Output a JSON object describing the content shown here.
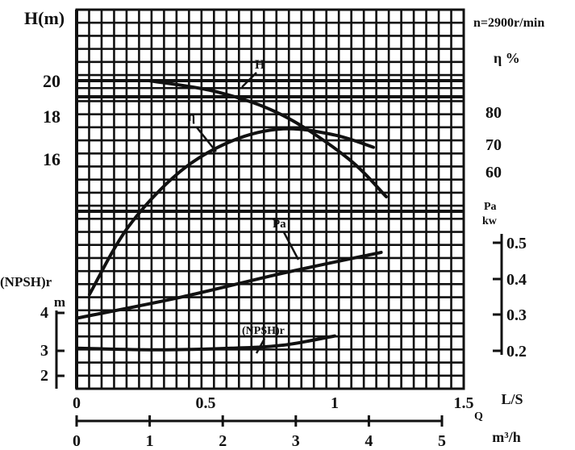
{
  "chart_data": {
    "type": "line",
    "title": "n=2900r/min",
    "left_axis": {
      "label": "H(m)",
      "ticks": [
        {
          "value": 20,
          "label": "20"
        },
        {
          "value": 18,
          "label": "18"
        },
        {
          "value": 16,
          "label": "16"
        }
      ]
    },
    "npsh_axis": {
      "label": "(NPSH)r",
      "unit": "m",
      "ticks": [
        {
          "value": 4,
          "label": "4"
        },
        {
          "value": 3,
          "label": "3"
        },
        {
          "value": 2,
          "label": "2"
        }
      ]
    },
    "eff_axis": {
      "label": "η %",
      "ticks": [
        {
          "value": 80,
          "label": "80"
        },
        {
          "value": 70,
          "label": "70"
        },
        {
          "value": 60,
          "label": "60"
        }
      ]
    },
    "power_axis": {
      "label": "Pa",
      "unit": "kw",
      "ticks": [
        {
          "value": 0.5,
          "label": "0.5"
        },
        {
          "value": 0.4,
          "label": "0.4"
        },
        {
          "value": 0.3,
          "label": "0.3"
        },
        {
          "value": 0.2,
          "label": "0.2"
        }
      ]
    },
    "x_axis_ls": {
      "label": "L/S",
      "range": [
        0,
        1.5
      ],
      "ticks": [
        {
          "value": 0,
          "label": "0"
        },
        {
          "value": 0.5,
          "label": "0.5"
        },
        {
          "value": 1,
          "label": "1"
        },
        {
          "value": 1.5,
          "label": "1.5"
        }
      ]
    },
    "x_axis_m3h": {
      "label": "m³/h",
      "symbol": "Q",
      "range": [
        0,
        5
      ],
      "ticks": [
        {
          "value": 0,
          "label": "0"
        },
        {
          "value": 1,
          "label": "1"
        },
        {
          "value": 2,
          "label": "2"
        },
        {
          "value": 3,
          "label": "3"
        },
        {
          "value": 4,
          "label": "4"
        },
        {
          "value": 5,
          "label": "5"
        }
      ]
    },
    "grid": true,
    "series": [
      {
        "name": "H",
        "axis": "left_axis",
        "x": [
          0.28,
          0.55,
          0.8,
          1.05,
          1.2
        ],
        "y": [
          20.0,
          19.7,
          19.1,
          18.0,
          17.0
        ]
      },
      {
        "name": "η",
        "axis": "eff_axis",
        "x": [
          0.05,
          0.2,
          0.4,
          0.6,
          0.8,
          1.0,
          1.15
        ],
        "y": [
          20,
          42,
          60,
          70,
          74,
          72,
          68
        ]
      },
      {
        "name": "Pa",
        "axis": "power_axis",
        "x": [
          0.0,
          0.4,
          0.8,
          1.18
        ],
        "y": [
          0.28,
          0.34,
          0.41,
          0.47
        ]
      },
      {
        "name": "(NPSH)r",
        "axis": "npsh_axis",
        "x": [
          0.0,
          0.3,
          0.6,
          0.8,
          1.0
        ],
        "y": [
          2.9,
          2.85,
          2.9,
          3.0,
          3.3
        ]
      }
    ]
  }
}
